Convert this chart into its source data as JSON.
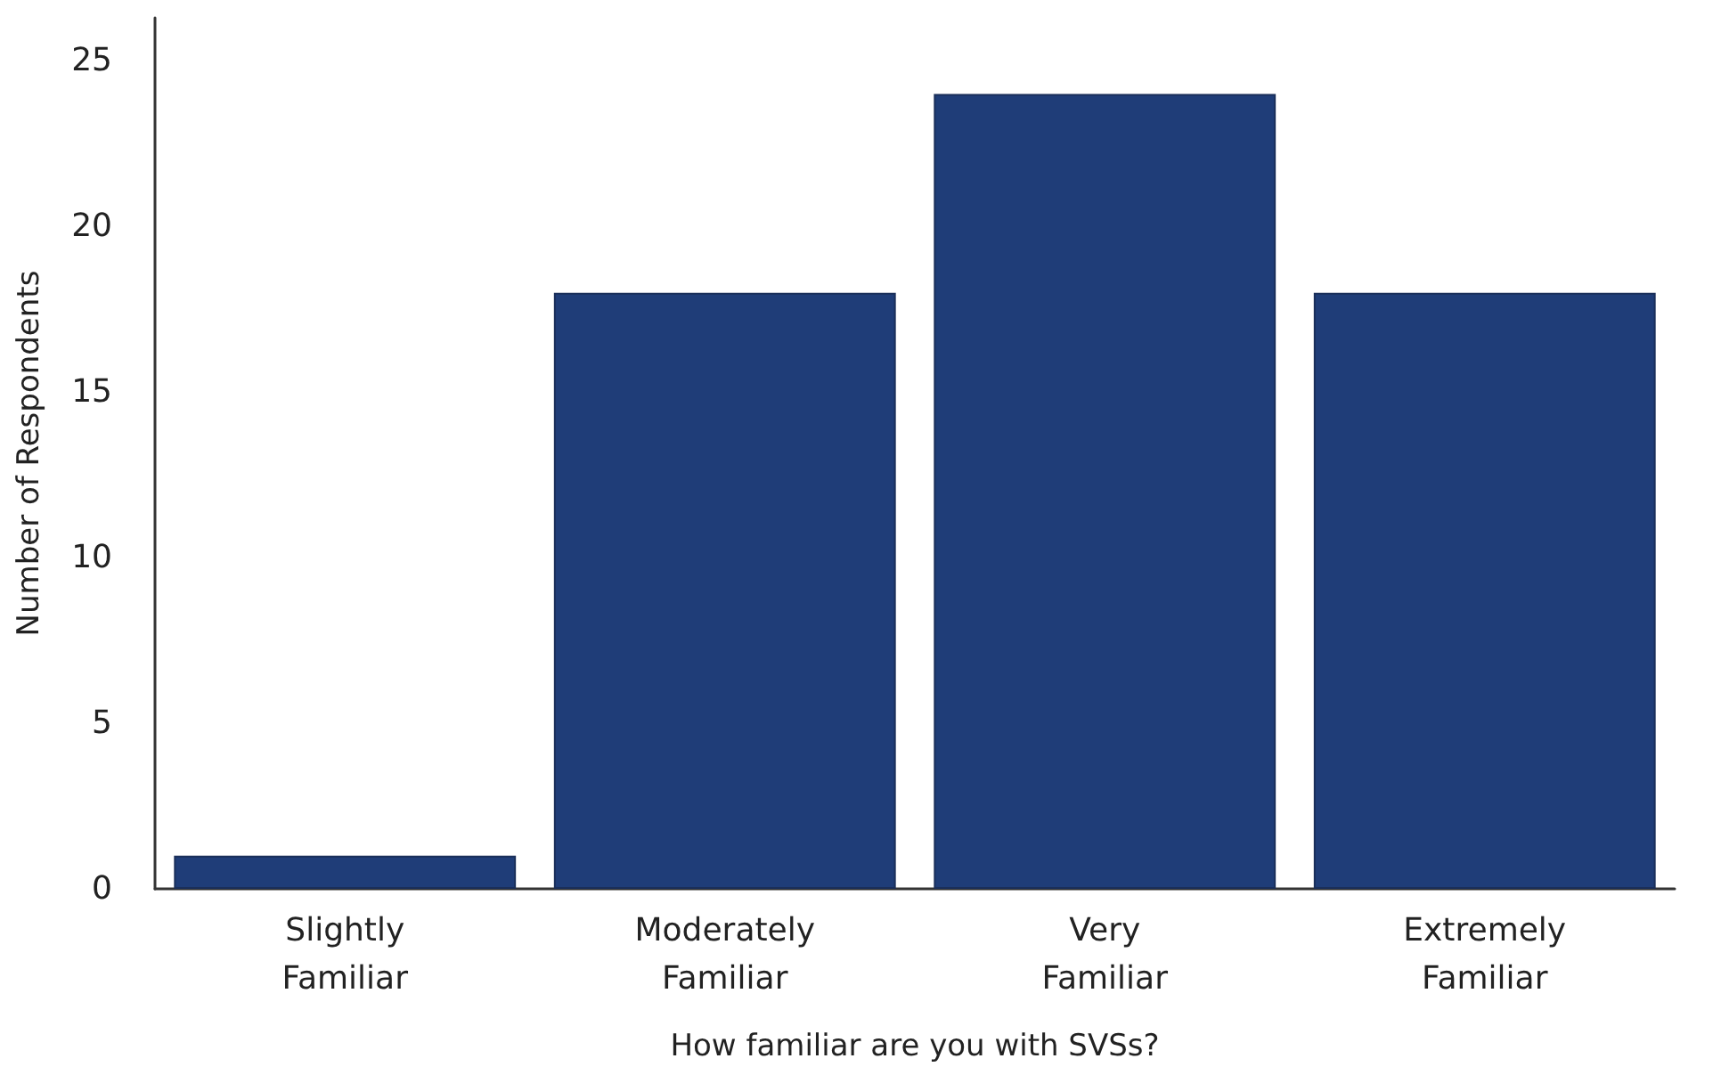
{
  "chart_data": {
    "type": "bar",
    "categories": [
      "Slightly Familiar",
      "Moderately Familiar",
      "Very Familiar",
      "Extremely Familiar"
    ],
    "values": [
      1,
      18,
      24,
      18
    ],
    "color": "#1f3d78",
    "xlabel": "How familiar are you with SVSs?",
    "ylabel": "Number of Respondents",
    "ylim": [
      0,
      26.3
    ],
    "yticks": [
      0,
      5,
      10,
      15,
      20,
      25
    ],
    "grid": false
  }
}
